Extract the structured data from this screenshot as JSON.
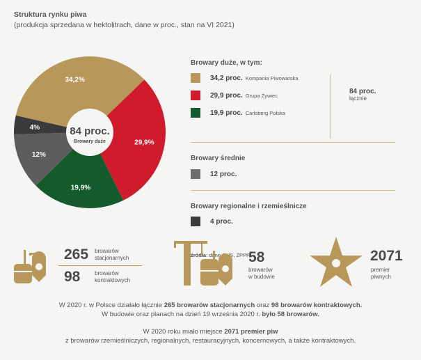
{
  "title": "Struktura rynku piwa",
  "subtitle": "(produkcja sprzedana w hektolitrach, dane w proc., stan na VI 2021)",
  "chart_data": {
    "type": "pie",
    "donut": true,
    "center_label": "84 proc.",
    "center_sublabel": "Browary duże",
    "slices": [
      {
        "label": "34,2%",
        "value": 34.2,
        "color": "#b8975a",
        "name": "Kompania Piwowarska"
      },
      {
        "label": "29,9%",
        "value": 29.9,
        "color": "#cf1b2b",
        "name": "Grupa Żywiec"
      },
      {
        "label": "19,9%",
        "value": 19.9,
        "color": "#155a2c",
        "name": "Carlsberg Polska"
      },
      {
        "label": "12%",
        "value": 12,
        "color": "#5c5c5c",
        "name": "Browary średnie"
      },
      {
        "label": "4%",
        "value": 4,
        "color": "#3a3a3a",
        "name": "Browary regionalne i rzemieślnicze"
      }
    ]
  },
  "legend": {
    "large_title": "Browary duże, w tym:",
    "large": [
      {
        "value": "34,2 proc.",
        "name": "Kompania Piwowarska",
        "color": "#b8975a"
      },
      {
        "value": "29,9 proc.",
        "name": "Grupa Żywiec",
        "color": "#cf1b2b"
      },
      {
        "value": "19,9 proc.",
        "name": "Carlsberg Polska",
        "color": "#155a2c"
      }
    ],
    "large_total": "84 proc.",
    "large_total_sub": "łącznie",
    "medium_title": "Browary średnie",
    "medium_value": "12 proc.",
    "medium_color": "#6e6e6e",
    "regional_title": "Browary regionalne i rzemieślnicze",
    "regional_value": "4 proc.",
    "regional_color": "#3a3a3a",
    "source_label": "źródła",
    "source": ": dane GUS, ZPPP"
  },
  "stats": {
    "s1_num": "265",
    "s1_l1": "browarów",
    "s1_l2": "stacjonarnych",
    "s2_num": "98",
    "s2_l1": "browarów",
    "s2_l2": "kontraktowych",
    "s3_num": "58",
    "s3_l1": "browarów",
    "s3_l2": "w budowie",
    "s4_num": "2071",
    "s4_l1": "premier",
    "s4_l2": "piwnych"
  },
  "text": {
    "p1a": "W 2020 r. w Polsce działało łącznie ",
    "p1b": "265 browarów stacjonarnych",
    "p1c": " oraz ",
    "p1d": "98 browarów kontraktowych.",
    "p2a": "W budowie oraz planach na dzień 19 września 2020 r. ",
    "p2b": "było 58 browarów.",
    "p3a": "W 2020 roku miało miejsce ",
    "p3b": "2071 premier piw",
    "p4": "z browarów rzemieślniczych, regionalnych, restauracyjnych, koncernowych, a także kontraktowych."
  },
  "accent": "#b8975a"
}
